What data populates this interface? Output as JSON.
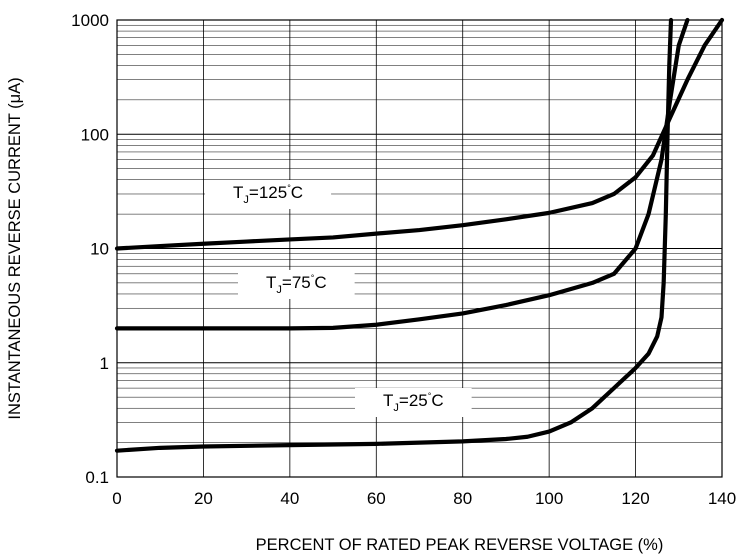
{
  "chart_data": {
    "type": "line",
    "title": "",
    "xlabel": "PERCENT OF RATED PEAK REVERSE VOLTAGE (%)",
    "ylabel": "INSTANTANEOUS REVERSE CURRENT (μA)",
    "x_scale": "linear",
    "y_scale": "log",
    "xlim": [
      0,
      140
    ],
    "ylim": [
      0.1,
      1000
    ],
    "x_ticks": [
      "0",
      "20",
      "40",
      "60",
      "80",
      "100",
      "120",
      "140"
    ],
    "x_tick_values": [
      0,
      20,
      40,
      60,
      80,
      100,
      120,
      140
    ],
    "y_ticks": [
      "0.1",
      "1",
      "10",
      "100",
      "1000"
    ],
    "y_tick_values": [
      0.1,
      1,
      10,
      100,
      1000
    ],
    "grid": true,
    "series": [
      {
        "label_main": "T",
        "label_sub": "J",
        "label_value": "=125",
        "label_deg": "°",
        "label_unit": "C",
        "x": [
          0,
          10,
          20,
          30,
          40,
          50,
          60,
          70,
          80,
          90,
          100,
          110,
          115,
          120,
          124,
          128,
          132,
          136,
          140
        ],
        "y": [
          10,
          10.5,
          11,
          11.5,
          12,
          12.5,
          13.5,
          14.5,
          16,
          18,
          20.5,
          25,
          30,
          42,
          65,
          140,
          300,
          600,
          1000
        ]
      },
      {
        "label_main": "T",
        "label_sub": "J",
        "label_value": "=75",
        "label_deg": "°",
        "label_unit": "C",
        "x": [
          0,
          10,
          20,
          30,
          40,
          50,
          60,
          70,
          80,
          90,
          100,
          110,
          115,
          120,
          123,
          126,
          128,
          130,
          132
        ],
        "y": [
          2,
          2,
          2,
          2,
          2,
          2.02,
          2.15,
          2.4,
          2.7,
          3.2,
          3.9,
          5,
          6,
          10,
          20,
          60,
          200,
          600,
          1000
        ]
      },
      {
        "label_main": "T",
        "label_sub": "J",
        "label_value": "=25",
        "label_deg": "°",
        "label_unit": "C",
        "x": [
          0,
          10,
          20,
          40,
          60,
          80,
          90,
          95,
          100,
          105,
          110,
          115,
          120,
          123,
          125,
          126,
          126.5,
          127,
          127.4,
          127.8,
          128.2
        ],
        "y": [
          0.17,
          0.18,
          0.185,
          0.19,
          0.195,
          0.205,
          0.215,
          0.225,
          0.25,
          0.3,
          0.4,
          0.6,
          0.9,
          1.2,
          1.7,
          2.5,
          5,
          20,
          100,
          400,
          1000
        ]
      }
    ]
  }
}
